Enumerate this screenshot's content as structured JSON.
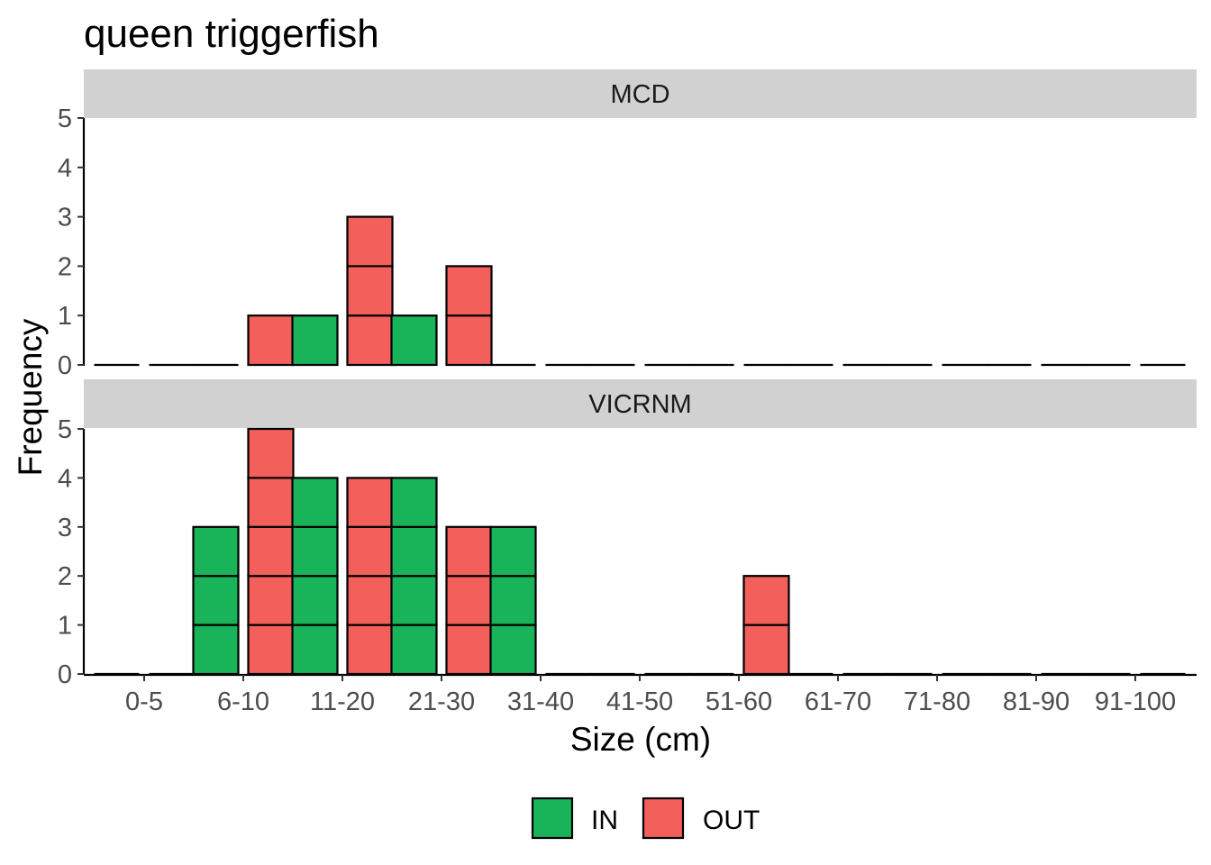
{
  "chart_data": {
    "type": "bar",
    "title": "queen triggerfish",
    "xlabel": "Size (cm)",
    "ylabel": "Frequency",
    "ylim": [
      0,
      5
    ],
    "y_ticks": [
      "0",
      "1",
      "2",
      "3",
      "4",
      "5"
    ],
    "categories": [
      "0-5",
      "6-10",
      "11-20",
      "21-30",
      "31-40",
      "41-50",
      "51-60",
      "61-70",
      "71-80",
      "81-90",
      "91-100"
    ],
    "grid": false,
    "legend_position": "bottom",
    "series": [
      {
        "name": "IN",
        "color": "#19B35A"
      },
      {
        "name": "OUT",
        "color": "#F35F5B"
      }
    ],
    "panels": [
      {
        "label": "MCD",
        "values": {
          "IN": [
            0,
            0,
            1,
            1,
            0,
            0,
            0,
            0,
            0,
            0,
            0
          ],
          "OUT": [
            0,
            1,
            3,
            2,
            0,
            0,
            0,
            0,
            0,
            0,
            0
          ]
        }
      },
      {
        "label": "VICRNM",
        "values": {
          "IN": [
            0,
            3,
            4,
            4,
            3,
            0,
            0,
            0,
            0,
            0,
            0
          ],
          "OUT": [
            0,
            5,
            4,
            3,
            0,
            0,
            2,
            0,
            0,
            0,
            0
          ]
        }
      }
    ]
  }
}
